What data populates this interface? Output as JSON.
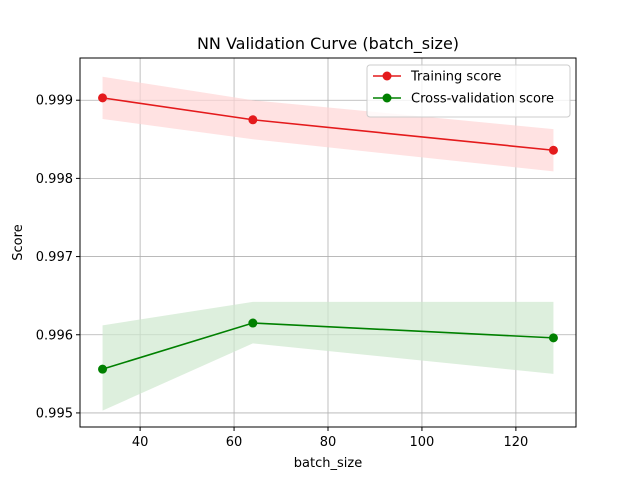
{
  "chart_data": {
    "type": "line",
    "title": "NN Validation Curve (batch_size)",
    "xlabel": "batch_size",
    "ylabel": "Score",
    "xlim": [
      27.2,
      132.8
    ],
    "ylim": [
      0.99482,
      0.99954
    ],
    "xticks": [
      40,
      60,
      80,
      100,
      120
    ],
    "yticks": [
      0.995,
      0.996,
      0.997,
      0.998,
      0.999
    ],
    "grid": true,
    "legend_position": "top-right",
    "series": [
      {
        "name": "Training score",
        "color": "#e41a1c",
        "band_color": "#ffd6d6",
        "x": [
          32,
          64,
          128
        ],
        "y": [
          0.99903,
          0.99875,
          0.99836
        ],
        "lower": [
          0.99876,
          0.9985,
          0.99809
        ],
        "upper": [
          0.9993,
          0.999,
          0.99863
        ]
      },
      {
        "name": "Cross-validation score",
        "color": "#008000",
        "band_color": "#cfe8cf",
        "x": [
          32,
          64,
          128
        ],
        "y": [
          0.99556,
          0.99615,
          0.99596
        ],
        "lower": [
          0.99503,
          0.99589,
          0.9955
        ],
        "upper": [
          0.99612,
          0.99642,
          0.99642
        ]
      }
    ]
  }
}
